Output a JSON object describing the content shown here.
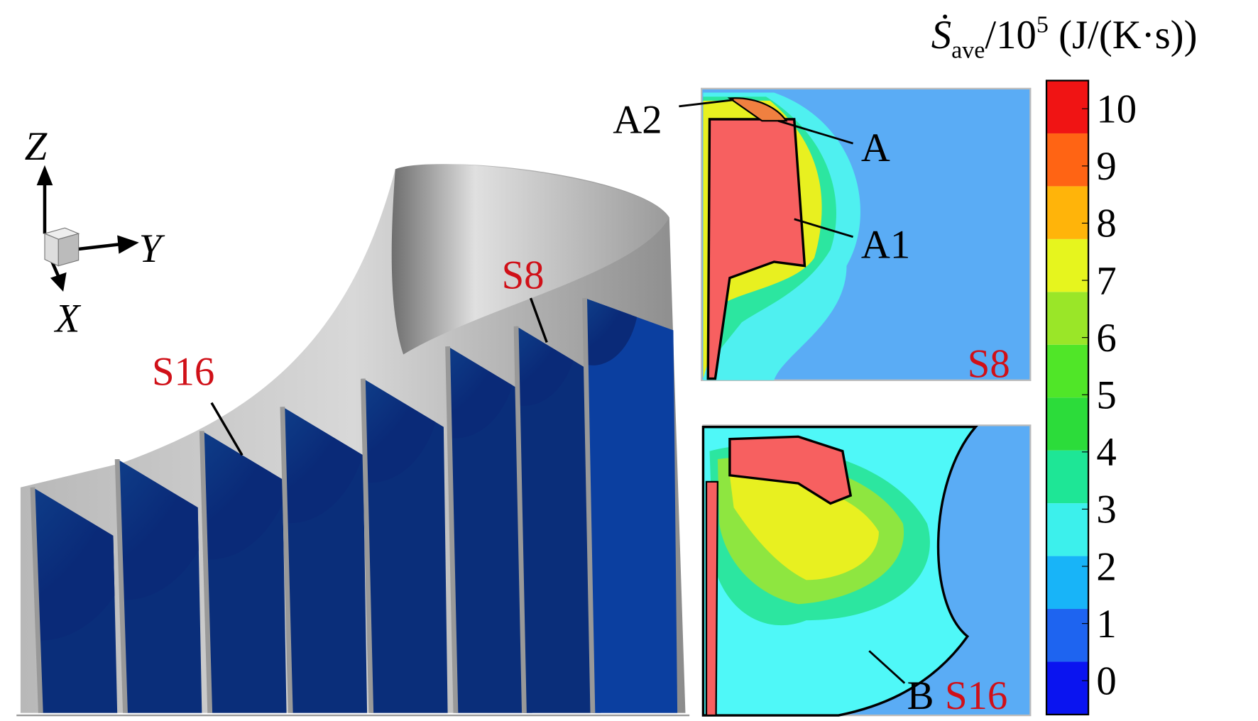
{
  "colorbar": {
    "title_symbol": "Ṡ",
    "title_subscript": "ave",
    "title_base": "/10",
    "title_exponent": "5",
    "title_units": " (J/(K·s))",
    "ticks": [
      0,
      1,
      2,
      3,
      4,
      5,
      6,
      7,
      8,
      9,
      10
    ],
    "colors": [
      "#0a14f0",
      "#1e64f0",
      "#18b4f8",
      "#3cf0ec",
      "#1ee696",
      "#2cdc3a",
      "#50e628",
      "#9ae628",
      "#e6f51e",
      "#ffb40a",
      "#ff6414",
      "#f01414"
    ]
  },
  "axes_triad": {
    "z": "Z",
    "y": "Y",
    "x": "X"
  },
  "main_view": {
    "s16_label": "S16",
    "s8_label": "S8"
  },
  "inset_s8": {
    "label": "S8",
    "a2": "A2",
    "a": "A",
    "a1": "A1"
  },
  "inset_s16": {
    "label": "S16",
    "b": "B"
  }
}
